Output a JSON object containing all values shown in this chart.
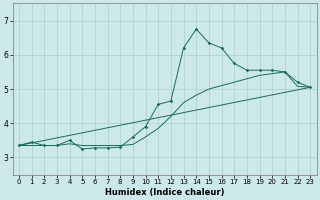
{
  "xlabel": "Humidex (Indice chaleur)",
  "bg_color": "#cce8e8",
  "grid_color": "#aacfcf",
  "line_color": "#1a6b5a",
  "xlim": [
    -0.5,
    23.5
  ],
  "ylim": [
    2.5,
    7.5
  ],
  "xticks": [
    0,
    1,
    2,
    3,
    4,
    5,
    6,
    7,
    8,
    9,
    10,
    11,
    12,
    13,
    14,
    15,
    16,
    17,
    18,
    19,
    20,
    21,
    22,
    23
  ],
  "yticks": [
    3,
    4,
    5,
    6,
    7
  ],
  "series1_x": [
    0,
    1,
    2,
    3,
    4,
    5,
    6,
    7,
    8,
    9,
    10,
    11,
    12,
    13,
    14,
    15,
    16,
    17,
    18,
    19,
    20,
    21,
    22,
    23
  ],
  "series1_y": [
    3.35,
    3.45,
    3.35,
    3.35,
    3.5,
    3.25,
    3.28,
    3.28,
    3.3,
    3.6,
    3.9,
    4.55,
    4.65,
    6.2,
    6.75,
    6.35,
    6.2,
    5.75,
    5.55,
    5.55,
    5.55,
    5.5,
    5.2,
    5.05
  ],
  "series2_x": [
    0,
    1,
    2,
    3,
    4,
    5,
    6,
    7,
    8,
    9,
    10,
    11,
    12,
    13,
    14,
    15,
    16,
    17,
    18,
    19,
    20,
    21,
    22,
    23
  ],
  "series2_y": [
    3.35,
    3.35,
    3.35,
    3.35,
    3.4,
    3.35,
    3.35,
    3.35,
    3.35,
    3.38,
    3.6,
    3.85,
    4.2,
    4.6,
    4.82,
    5.0,
    5.1,
    5.2,
    5.3,
    5.4,
    5.45,
    5.5,
    5.08,
    5.05
  ],
  "series3_x": [
    0,
    23
  ],
  "series3_y": [
    3.35,
    5.05
  ],
  "xlabel_fontsize": 6.0,
  "tick_fontsize_x": 5.0,
  "tick_fontsize_y": 5.5
}
